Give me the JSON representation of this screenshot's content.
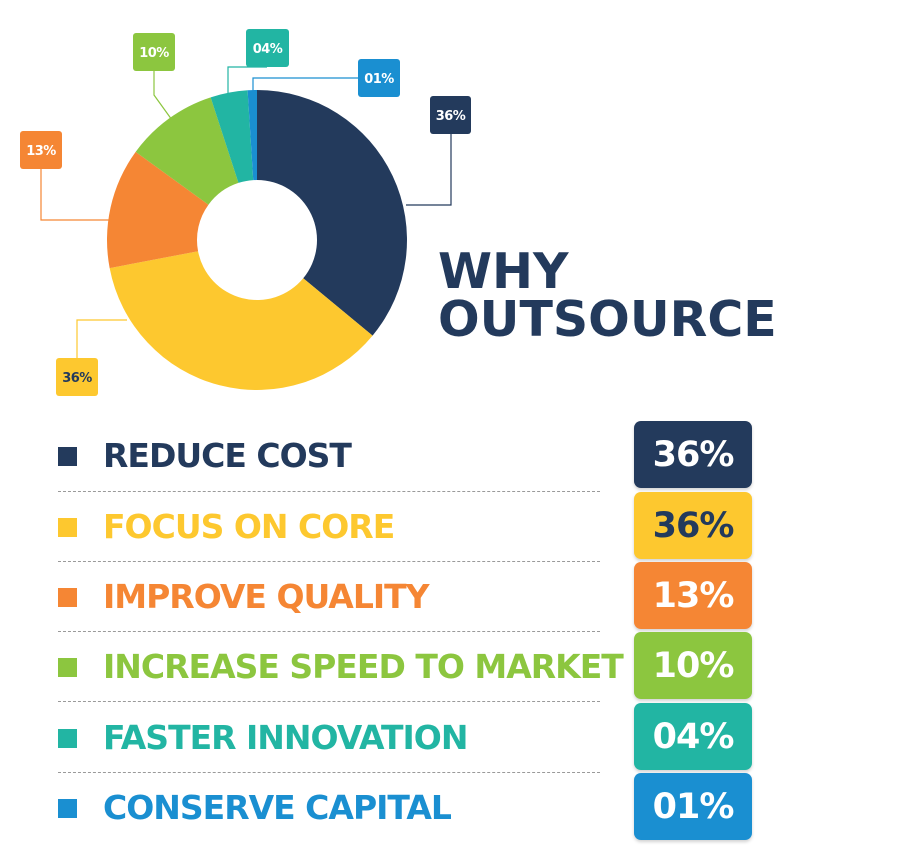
{
  "chart_data": {
    "type": "pie",
    "style": "donut",
    "title": "WHY OUTSOURCE",
    "title_lines": [
      "WHY",
      "OUTSOURCE"
    ],
    "categories": [
      "REDUCE COST",
      "FOCUS ON CORE",
      "IMPROVE QUALITY",
      "INCREASE SPEED TO MARKET",
      "FASTER INNOVATION",
      "CONSERVE CAPITAL"
    ],
    "values": [
      36,
      36,
      13,
      10,
      4,
      1
    ],
    "value_labels": [
      "36%",
      "36%",
      "13%",
      "10%",
      "04%",
      "01%"
    ],
    "colors": [
      "#233a5c",
      "#fdc82f",
      "#f58634",
      "#8cc63f",
      "#22b5a3",
      "#1a8fd1"
    ],
    "label_text_colors": [
      "#ffffff",
      "#233a5c",
      "#ffffff",
      "#ffffff",
      "#ffffff",
      "#ffffff"
    ],
    "legend_placement": "bottom"
  }
}
